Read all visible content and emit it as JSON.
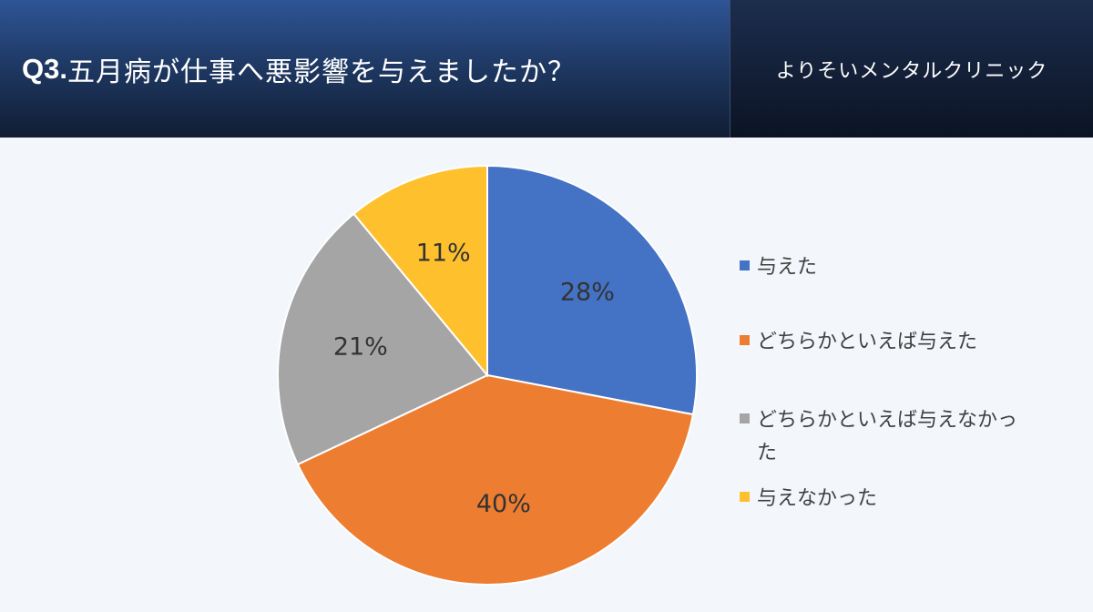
{
  "header": {
    "question_number": "Q3.",
    "question_text": "五月病が仕事へ悪影響を与えましたか？",
    "clinic_name": "よりそいメンタルクリニック"
  },
  "chart_data": {
    "type": "pie",
    "title": "Q3.五月病が仕事へ悪影響を与えましたか？",
    "categories": [
      "与えた",
      "どちらかといえば与えた",
      "どちらかといえば与えなかった",
      "与えなかった"
    ],
    "values": [
      28,
      40,
      21,
      11
    ],
    "labels": [
      "28%",
      "40%",
      "21%",
      "11%"
    ],
    "colors": [
      "#4472c4",
      "#ed7d31",
      "#a5a5a5",
      "#ffc02e"
    ],
    "legend_position": "right"
  },
  "legend": {
    "items": [
      {
        "label": "与えた",
        "color": "#4472c4"
      },
      {
        "label": "どちらかといえば与えた",
        "color": "#ed7d31"
      },
      {
        "label": "どちらかといえば与えなかった",
        "color": "#a5a5a5"
      },
      {
        "label": "与えなかった",
        "color": "#ffc02e"
      }
    ]
  }
}
